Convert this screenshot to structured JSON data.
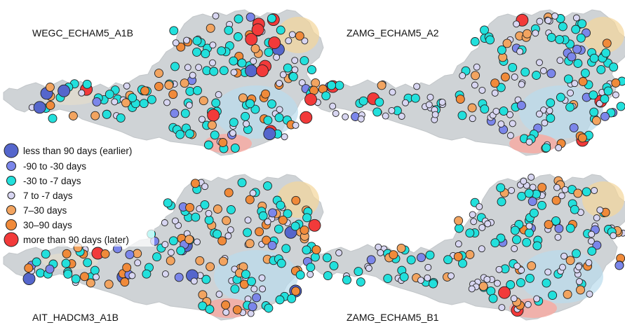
{
  "figure": {
    "panels": [
      {
        "id": "p1",
        "title": "WEGC_ECHAM5_A1B"
      },
      {
        "id": "p2",
        "title": "ZAMG_ECHAM5_A2"
      },
      {
        "id": "p3",
        "title": "AIT_HADCM3_A1B"
      },
      {
        "id": "p4",
        "title": "ZAMG_ECHAM5_B1"
      }
    ],
    "legend": {
      "items": [
        {
          "label": "less than 90 days (earlier)",
          "color": "#5566cc",
          "size": "large"
        },
        {
          "label": "-90 to -30 days",
          "color": "#7b86ea",
          "size": "medium"
        },
        {
          "label": "-30 to -7 days",
          "color": "#22e0dc",
          "size": "medium"
        },
        {
          "label": "7 to -7 days",
          "color": "#d8d6f2",
          "size": "small"
        },
        {
          "label": "7–30 days",
          "color": "#f2a460",
          "size": "medium"
        },
        {
          "label": "30–90 days",
          "color": "#f08a3a",
          "size": "medium"
        },
        {
          "label": "more than 90 days (later)",
          "color": "#f23a3a",
          "size": "large"
        }
      ]
    },
    "colors": {
      "outline": "#222222",
      "terrain": "#cfd3d6",
      "highlight_blue": "#b9dcec",
      "highlight_orange": "#f4d69a",
      "highlight_red": "#f7a9a0"
    }
  }
}
